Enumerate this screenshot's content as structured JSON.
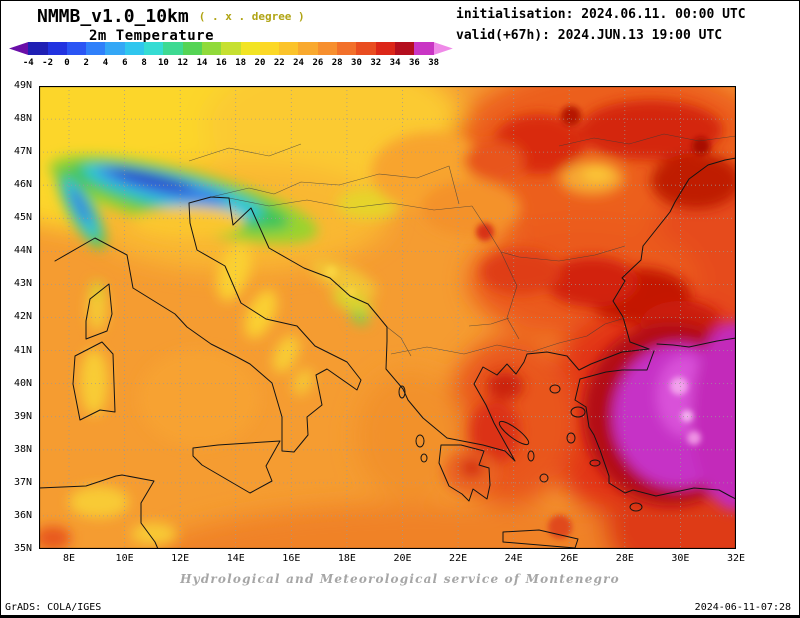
{
  "header": {
    "model": "NMMB_v1.0_10km",
    "model_note": "( . x . degree )",
    "variable": "2m Temperature",
    "init_label": "initialisation: 2024.06.11. 00:00 UTC",
    "valid_label": "valid(+67h): 2024.JUN.13 19:00 UTC"
  },
  "colorbar": {
    "labels": [
      "-4",
      "-2",
      "0",
      "2",
      "4",
      "6",
      "8",
      "10",
      "12",
      "14",
      "16",
      "18",
      "20",
      "22",
      "24",
      "26",
      "28",
      "30",
      "32",
      "34",
      "36",
      "38"
    ],
    "colors": [
      "#6a0fa8",
      "#2020b4",
      "#2233e0",
      "#2a55f4",
      "#2f80fa",
      "#33a7f6",
      "#2fc6ee",
      "#35dcd3",
      "#3eda92",
      "#55d455",
      "#90da3a",
      "#c6e030",
      "#f2e424",
      "#fcd826",
      "#fbc32a",
      "#f9a92e",
      "#f78f2e",
      "#f2702a",
      "#e94d20",
      "#dc2618",
      "#b40e1e",
      "#c935c4",
      "#ef8ae8"
    ]
  },
  "map": {
    "lat_labels": [
      "49N",
      "48N",
      "47N",
      "46N",
      "45N",
      "44N",
      "43N",
      "42N",
      "41N",
      "40N",
      "39N",
      "38N",
      "37N",
      "36N",
      "35N"
    ],
    "lon_labels": [
      "8E",
      "10E",
      "12E",
      "14E",
      "16E",
      "18E",
      "20E",
      "22E",
      "24E",
      "26E",
      "28E",
      "30E",
      "32E"
    ]
  },
  "footer": {
    "credit": "Hydrological and Meteorological service of Montenegro",
    "grads": "GrADS: COLA/IGES",
    "timestamp": "2024-06-11-07:28"
  }
}
